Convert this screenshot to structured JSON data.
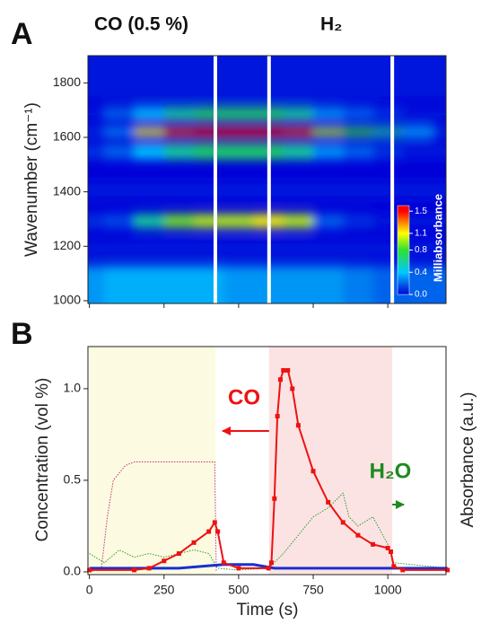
{
  "chart_data": [
    {
      "type": "heatmap",
      "panel": "A",
      "annotations": [
        "CO (0.5 %)",
        "H₂"
      ],
      "ylabel": "Wavenumber (cm⁻¹)",
      "xlim": [
        -5,
        1195
      ],
      "xticks": [
        0,
        250,
        500,
        750,
        1000
      ],
      "ylim": [
        990,
        1900
      ],
      "yticks": [
        1000,
        1200,
        1400,
        1600,
        1800
      ],
      "dividers": [
        422,
        602,
        1015
      ],
      "x": [
        0,
        100,
        200,
        300,
        400,
        500,
        600,
        700,
        800,
        900,
        1000,
        1100,
        1200
      ],
      "y": [
        1060,
        1200,
        1290,
        1400,
        1560,
        1620,
        1680,
        1800
      ],
      "z": [
        [
          0.3,
          0.35,
          0.35,
          0.35,
          0.35,
          0.3,
          0.3,
          0.3,
          0.3,
          0.25,
          0.2,
          0.2,
          0.2
        ],
        [
          0.05,
          0.05,
          0.05,
          0.05,
          0.05,
          0.05,
          0.05,
          0.05,
          0.05,
          0.05,
          0.05,
          0.05,
          0.05
        ],
        [
          0.1,
          0.15,
          0.6,
          0.9,
          1.0,
          1.0,
          1.1,
          1.0,
          0.2,
          0.1,
          0.05,
          0.05,
          0.05
        ],
        [
          0.05,
          0.05,
          0.05,
          0.05,
          0.05,
          0.05,
          0.05,
          0.05,
          0.05,
          0.05,
          0.05,
          0.05,
          0.05
        ],
        [
          0.1,
          0.2,
          0.4,
          0.6,
          0.7,
          0.7,
          0.7,
          0.6,
          0.3,
          0.2,
          0.1,
          0.05,
          0.05
        ],
        [
          0.1,
          0.3,
          1.1,
          1.4,
          1.5,
          1.5,
          1.5,
          1.4,
          1.0,
          0.8,
          0.6,
          0.4,
          0.1
        ],
        [
          0.05,
          0.2,
          0.4,
          0.6,
          0.7,
          0.7,
          0.7,
          0.6,
          0.3,
          0.2,
          0.1,
          0.05,
          0.05
        ],
        [
          0.05,
          0.05,
          0.05,
          0.05,
          0.05,
          0.05,
          0.05,
          0.05,
          0.05,
          0.05,
          0.05,
          0.05,
          0.05
        ]
      ],
      "zlim": [
        0,
        1.6
      ],
      "colorscale": [
        [
          0,
          "#0000d8"
        ],
        [
          0.4,
          "#00c8ff"
        ],
        [
          0.8,
          "#30e030"
        ],
        [
          1.1,
          "#ffff00"
        ],
        [
          1.5,
          "#ff0000"
        ]
      ],
      "colorbar_label": "Milliabsorbance",
      "colorbar_ticks": [
        {
          "value": 0,
          "label": "0.0"
        },
        0.4,
        0.8,
        1.1,
        1.5
      ]
    },
    {
      "type": "line",
      "panel": "B",
      "xlabel": "Time (s)",
      "ylabel": "Concentration (vol %)",
      "y2label": "Absorbance (a.u.)",
      "xlim": [
        -5,
        1195
      ],
      "xticks": [
        0,
        250,
        500,
        750,
        1000
      ],
      "ylim": [
        -0.015,
        1.23
      ],
      "yticks": [
        {
          "value": 0,
          "label": "0.0"
        },
        0.5,
        {
          "value": 1,
          "label": "1.0"
        }
      ],
      "regions": [
        {
          "range": [
            0,
            422
          ],
          "color": "#fcfbe1"
        },
        {
          "range": [
            602,
            1015
          ],
          "color": "#fbe3e3"
        }
      ],
      "annotations": [
        {
          "text": "CO",
          "color": "#ee1111"
        },
        {
          "text": "H₂O",
          "color": "#1e8a1e"
        }
      ],
      "series": [
        {
          "name": "H₂O",
          "color": "#2e9a2e",
          "style": "dotted",
          "x": [
            0,
            50,
            100,
            150,
            200,
            250,
            300,
            350,
            400,
            430,
            500,
            600,
            650,
            700,
            750,
            800,
            850,
            870,
            900,
            950,
            1000,
            1020,
            1200
          ],
          "values": [
            0.1,
            0.05,
            0.12,
            0.08,
            0.1,
            0.08,
            0.1,
            0.12,
            0.1,
            0.02,
            0.01,
            0.02,
            0.1,
            0.2,
            0.3,
            0.35,
            0.43,
            0.3,
            0.25,
            0.3,
            0.15,
            0.05,
            0.02
          ]
        },
        {
          "name": "CO (0.5 %)",
          "color": "#c0307a",
          "style": "dotted",
          "x": [
            0,
            40,
            60,
            80,
            120,
            150,
            420,
            425
          ],
          "values": [
            0,
            0.02,
            0.3,
            0.5,
            0.58,
            0.6,
            0.6,
            0
          ]
        },
        {
          "name": "H₂",
          "color": "#1a2fd0",
          "style": "thick",
          "x": [
            0,
            300,
            450,
            550,
            620,
            1200
          ],
          "values": [
            0.02,
            0.02,
            0.04,
            0.04,
            0.02,
            0.02
          ]
        },
        {
          "name": "CO",
          "color": "#ee1111",
          "style": "markers",
          "x": [
            0,
            150,
            200,
            250,
            300,
            350,
            400,
            420,
            430,
            450,
            500,
            600,
            610,
            620,
            630,
            640,
            650,
            665,
            680,
            700,
            750,
            800,
            850,
            900,
            950,
            1000,
            1010,
            1020,
            1050,
            1200
          ],
          "values": [
            0.01,
            0.01,
            0.02,
            0.06,
            0.1,
            0.16,
            0.22,
            0.27,
            0.22,
            0.05,
            0.02,
            0.02,
            0.05,
            0.4,
            0.85,
            1.05,
            1.1,
            1.1,
            1.0,
            0.8,
            0.55,
            0.38,
            0.27,
            0.2,
            0.15,
            0.13,
            0.11,
            0.03,
            0.01,
            0.01
          ]
        }
      ]
    }
  ]
}
